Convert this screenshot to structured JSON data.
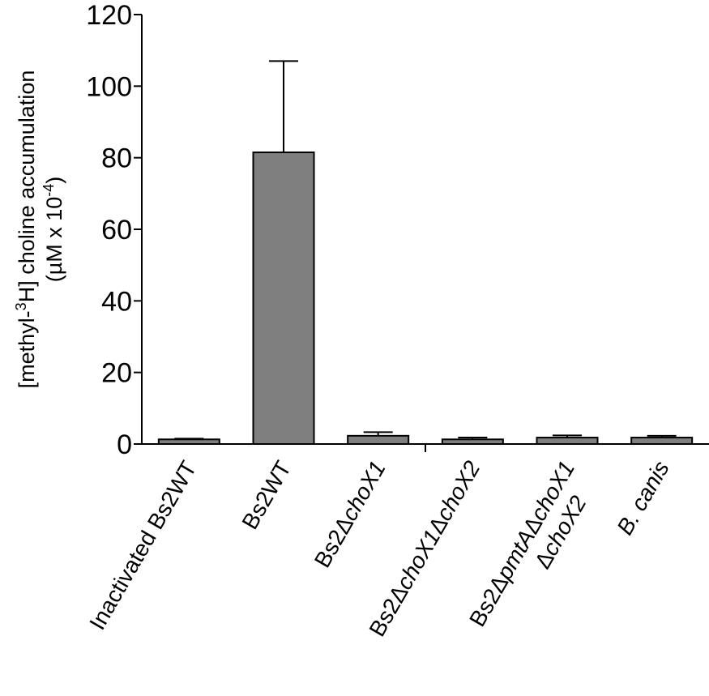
{
  "chart_data": {
    "type": "bar",
    "ylabel_line1": "[methyl-3H] choline accumulation",
    "ylabel_line2": "(µM x 10-4)",
    "ylabel_parts_line1": [
      {
        "text": "[methyl-",
        "sup": false
      },
      {
        "text": "3",
        "sup": true
      },
      {
        "text": "H] choline accumulation",
        "sup": false
      }
    ],
    "ylabel_parts_line2": [
      {
        "text": "(µM x 10",
        "sup": false
      },
      {
        "text": "-4",
        "sup": true
      },
      {
        "text": ")",
        "sup": false
      }
    ],
    "ylim": [
      0,
      120
    ],
    "yticks": [
      0,
      20,
      40,
      60,
      80,
      100,
      120
    ],
    "categories": [
      {
        "label": "Inactivated Bs2WT",
        "parts_line1": [
          {
            "text": "Inactivated Bs2WT",
            "italic": false
          }
        ],
        "parts_line2": []
      },
      {
        "label": "Bs2WT",
        "parts_line1": [
          {
            "text": "Bs2WT",
            "italic": false
          }
        ],
        "parts_line2": []
      },
      {
        "label": "Bs2ΔchoX1",
        "parts_line1": [
          {
            "text": "Bs2Δ",
            "italic": false
          },
          {
            "text": "choX1",
            "italic": true
          }
        ],
        "parts_line2": []
      },
      {
        "label": "Bs2ΔchoX1ΔchoX2",
        "parts_line1": [
          {
            "text": "Bs2Δ",
            "italic": false
          },
          {
            "text": "choX1",
            "italic": true
          },
          {
            "text": "Δ",
            "italic": false
          },
          {
            "text": "choX2",
            "italic": true
          }
        ],
        "parts_line2": []
      },
      {
        "label": "Bs2ΔpmtAΔchoX1 ΔchoX2",
        "parts_line1": [
          {
            "text": "Bs2Δ",
            "italic": false
          },
          {
            "text": "pmtA",
            "italic": true
          },
          {
            "text": "Δ",
            "italic": false
          },
          {
            "text": "choX1",
            "italic": true
          }
        ],
        "parts_line2": [
          {
            "text": "Δ",
            "italic": false
          },
          {
            "text": "choX2",
            "italic": true
          }
        ]
      },
      {
        "label": "B. canis",
        "parts_line1": [
          {
            "text": "B. canis",
            "italic": true
          }
        ],
        "parts_line2": []
      }
    ],
    "values": [
      1.3,
      81.5,
      2.3,
      1.3,
      1.8,
      1.8
    ],
    "errors": [
      0.2,
      25.5,
      1.0,
      0.5,
      0.6,
      0.5
    ],
    "colors": {
      "bar": "#7f7f7f",
      "axis": "#000000"
    }
  }
}
